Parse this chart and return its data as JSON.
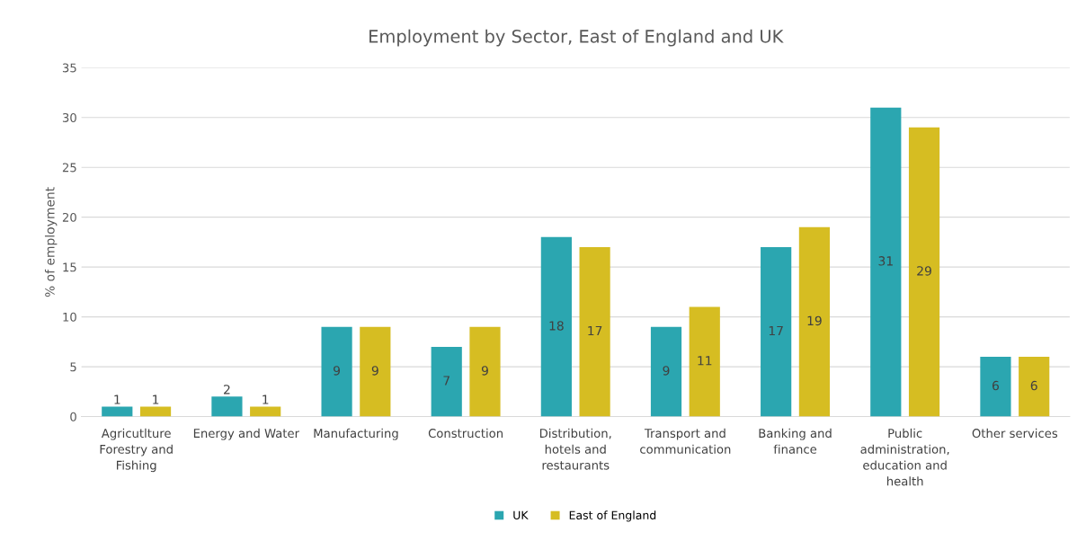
{
  "chart_data": {
    "type": "bar",
    "title": "Employment by Sector, East of England and UK",
    "ylabel": "% of employment",
    "categories": [
      "Agricutlture Forestry and Fishing",
      "Energy and Water",
      "Manufacturing",
      "Construction",
      "Distribution, hotels and restaurants",
      "Transport and communication",
      "Banking and finance",
      "Public administration, education and health",
      "Other services"
    ],
    "series": [
      {
        "name": "UK",
        "color": "#2ba6b0",
        "values": [
          1,
          2,
          9,
          7,
          18,
          9,
          17,
          31,
          6
        ]
      },
      {
        "name": "East of England",
        "color": "#d6bd22",
        "values": [
          1,
          1,
          9,
          9,
          17,
          11,
          19,
          29,
          6
        ]
      }
    ],
    "ylim": [
      0,
      35
    ],
    "yticks": [
      0,
      5,
      10,
      15,
      20,
      25,
      30,
      35
    ],
    "grid": "y",
    "legend": "bottom",
    "data_labels": true
  }
}
